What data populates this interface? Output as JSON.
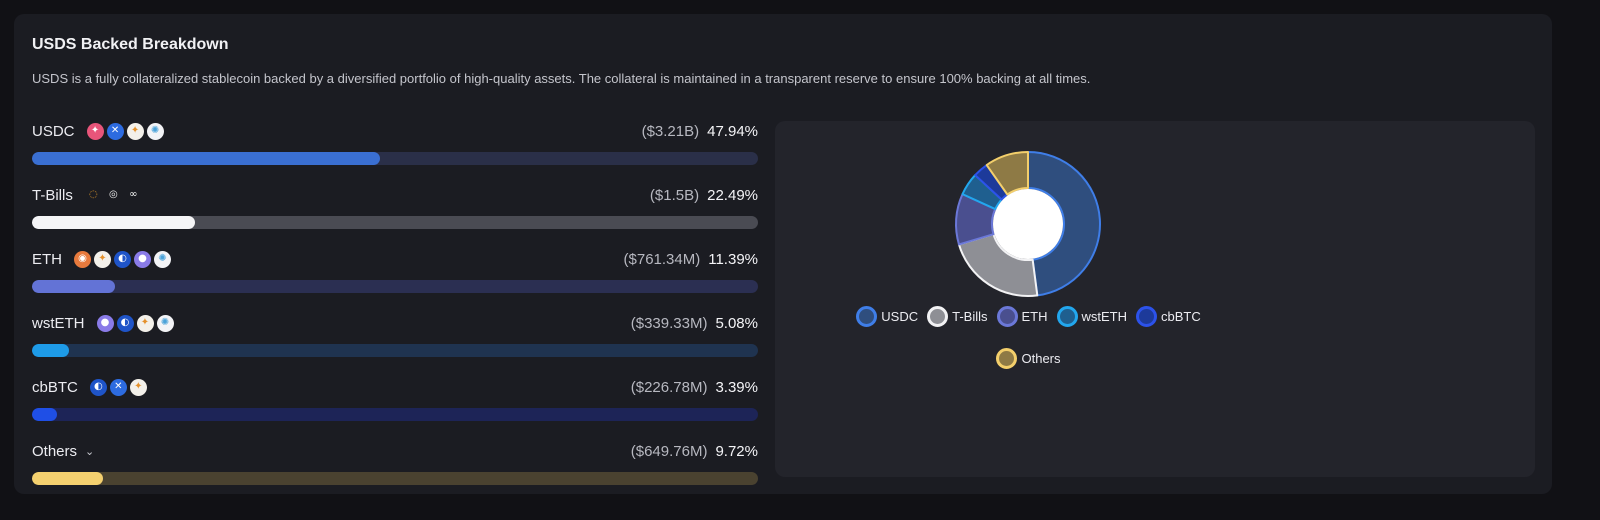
{
  "card": {
    "title": "USDS Backed Breakdown",
    "description": "USDS is a fully collateralized stablecoin backed by a diversified portfolio of high-quality assets. The collateral is maintained in a transparent reserve to ensure 100% backing at all times."
  },
  "assets": [
    {
      "name": "USDC",
      "amount": "($3.21B)",
      "percent": "47.94%",
      "value": 47.94,
      "color": "#3a6fd2",
      "track": "#2a2f48",
      "icons": [
        {
          "name": "pink-star-icon",
          "glyph": "✦",
          "bg": "#e8557a"
        },
        {
          "name": "blue-butterfly-icon",
          "glyph": "✕",
          "bg": "#2d6be0"
        },
        {
          "name": "sparkle-icon",
          "glyph": "✦",
          "bg": "#f3f0ea",
          "fg": "#e4902b"
        },
        {
          "name": "pinwheel-icon",
          "glyph": "✺",
          "bg": "#f3f3f6",
          "fg": "#4aa2d9"
        }
      ]
    },
    {
      "name": "T-Bills",
      "amount": "($1.5B)",
      "percent": "22.49%",
      "value": 22.49,
      "color": "#f5f5f7",
      "track": "#4a4b53",
      "icons": [
        {
          "name": "orange-ring-icon",
          "glyph": "◌",
          "bg": "transparent",
          "fg": "#e49a2a"
        },
        {
          "name": "arcs-icon",
          "glyph": "◎",
          "bg": "transparent",
          "fg": "#f0f0f0"
        },
        {
          "name": "link-icon",
          "glyph": "∞",
          "bg": "transparent",
          "fg": "#f0f0f0"
        }
      ]
    },
    {
      "name": "ETH",
      "amount": "($761.34M)",
      "percent": "11.39%",
      "value": 11.39,
      "color": "#6373d6",
      "track": "#2b2f52",
      "icons": [
        {
          "name": "orange-token-icon",
          "glyph": "◉",
          "bg": "#e87a3d"
        },
        {
          "name": "sparkle-icon",
          "glyph": "✦",
          "bg": "#f3f0ea",
          "fg": "#e4902b"
        },
        {
          "name": "blue-split-icon",
          "glyph": "◐",
          "bg": "#1f54c8"
        },
        {
          "name": "purple-ghost-icon",
          "glyph": "●",
          "bg": "#8a7be8"
        },
        {
          "name": "pinwheel-icon",
          "glyph": "✺",
          "bg": "#f3f3f6",
          "fg": "#4aa2d9"
        }
      ]
    },
    {
      "name": "wstETH",
      "amount": "($339.33M)",
      "percent": "5.08%",
      "value": 5.08,
      "color": "#1e9be8",
      "track": "#1f3350",
      "icons": [
        {
          "name": "purple-ghost-icon",
          "glyph": "●",
          "bg": "#8a7be8"
        },
        {
          "name": "blue-split-icon",
          "glyph": "◐",
          "bg": "#1f54c8"
        },
        {
          "name": "sparkle-icon",
          "glyph": "✦",
          "bg": "#f3f0ea",
          "fg": "#e4902b"
        },
        {
          "name": "pinwheel-icon",
          "glyph": "✺",
          "bg": "#f3f3f6",
          "fg": "#4aa2d9"
        }
      ]
    },
    {
      "name": "cbBTC",
      "amount": "($226.78M)",
      "percent": "3.39%",
      "value": 3.39,
      "color": "#1f4fe6",
      "track": "#1d2457",
      "icons": [
        {
          "name": "blue-split-icon",
          "glyph": "◐",
          "bg": "#1f54c8"
        },
        {
          "name": "blue-butterfly-icon",
          "glyph": "✕",
          "bg": "#2d6be0"
        },
        {
          "name": "sparkle-icon",
          "glyph": "✦",
          "bg": "#f3f0ea",
          "fg": "#e4902b"
        }
      ]
    },
    {
      "name": "Others",
      "amount": "($649.76M)",
      "percent": "9.72%",
      "value": 9.72,
      "color": "#f4d06f",
      "track": "#4a4230",
      "expandable": true,
      "icons": []
    }
  ],
  "chart_data": {
    "type": "pie",
    "variant": "donut",
    "categories": [
      "USDC",
      "T-Bills",
      "ETH",
      "wstETH",
      "cbBTC",
      "Others"
    ],
    "values": [
      47.94,
      22.49,
      11.39,
      5.08,
      3.39,
      9.72
    ],
    "colors": {
      "fill": [
        "#2f4e7e",
        "#8e8f95",
        "#4a4f8f",
        "#1f5f8f",
        "#1d3a9a",
        "#8e7a45"
      ],
      "stroke": [
        "#3f7ee8",
        "#f2f2f4",
        "#6b78d8",
        "#22a7ee",
        "#2c52ea",
        "#f3cf6b"
      ]
    },
    "legend": [
      "USDC",
      "T-Bills",
      "ETH",
      "wstETH",
      "cbBTC",
      "Others"
    ],
    "legend_position": "bottom"
  }
}
